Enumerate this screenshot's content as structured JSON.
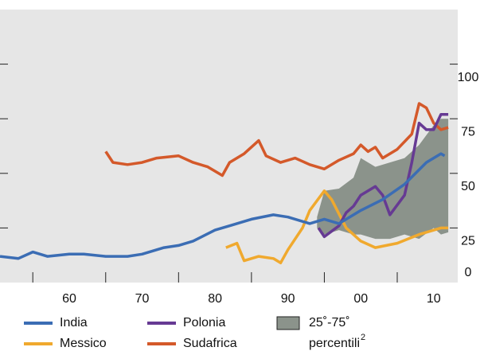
{
  "chart_data": {
    "type": "line",
    "xlim": [
      1950.5,
      2013.3
    ],
    "xticks": [
      {
        "value": 1960,
        "label": "60"
      },
      {
        "value": 1970,
        "label": "70"
      },
      {
        "value": 1980,
        "label": "80"
      },
      {
        "value": 1990,
        "label": "90"
      },
      {
        "value": 2000,
        "label": "00"
      },
      {
        "value": 2010,
        "label": "10"
      }
    ],
    "xminor": [
      1955,
      1965,
      1975,
      1985,
      1995,
      2005
    ],
    "ylim": [
      0,
      125
    ],
    "yticks": [
      0,
      25,
      50,
      75,
      100
    ],
    "series": [
      {
        "name": "India",
        "color": "#3b6db4",
        "x": [
          1950.5,
          1953,
          1955,
          1957,
          1960,
          1962,
          1965,
          1968,
          1970,
          1973,
          1975,
          1977,
          1980,
          1982,
          1985,
          1988,
          1990,
          1993,
          1995,
          1997,
          2000,
          2003,
          2006,
          2009,
          2011,
          2011.5
        ],
        "values": [
          12,
          11,
          14,
          12,
          13,
          13,
          12,
          12,
          13,
          16,
          17,
          19,
          24,
          26,
          29,
          31,
          30,
          27,
          29,
          27,
          33,
          38,
          45,
          55,
          59,
          58
        ]
      },
      {
        "name": "Messico",
        "color": "#f0a92e",
        "x": [
          1981.5,
          1983,
          1984,
          1986,
          1988,
          1989,
          1990,
          1992,
          1993,
          1995,
          1996,
          1998,
          2000,
          2002,
          2005,
          2008,
          2011,
          2012
        ],
        "values": [
          16,
          18,
          10,
          12,
          11,
          9,
          15,
          25,
          33,
          42,
          38,
          25,
          19,
          16,
          18,
          22,
          25,
          25
        ]
      },
      {
        "name": "Polonia",
        "color": "#663a93",
        "x": [
          1994.2,
          1995,
          1997,
          1998,
          1999,
          2000,
          2002,
          2003,
          2004,
          2006,
          2007,
          2008,
          2009,
          2010,
          2011,
          2012
        ],
        "values": [
          25,
          21,
          26,
          32,
          35,
          40,
          44,
          40,
          31,
          40,
          55,
          73,
          70,
          70,
          77,
          77
        ]
      },
      {
        "name": "Sudafrica",
        "color": "#d4592a",
        "x": [
          1965,
          1966,
          1968,
          1970,
          1972,
          1975,
          1977,
          1979,
          1981,
          1982,
          1984,
          1986,
          1987,
          1989,
          1991,
          1993,
          1995,
          1997,
          1999,
          2000,
          2001,
          2002,
          2003,
          2005,
          2007,
          2008,
          2009,
          2010,
          2011,
          2012
        ],
        "values": [
          60,
          55,
          54,
          55,
          57,
          58,
          55,
          53,
          49,
          55,
          59,
          65,
          58,
          55,
          57,
          54,
          52,
          56,
          59,
          63,
          60,
          62,
          57,
          61,
          68,
          82,
          80,
          73,
          70,
          71
        ]
      }
    ],
    "band": {
      "name": "25˚-75˚ percentili",
      "note": "2",
      "color": "#8b938b",
      "x": [
        1994,
        1995,
        1997,
        1999,
        2000,
        2002,
        2004,
        2006,
        2008,
        2010,
        2011,
        2012
      ],
      "lower": [
        25,
        22,
        24,
        22,
        22,
        20,
        20,
        22,
        20,
        25,
        22,
        23
      ],
      "upper": [
        30,
        42,
        43,
        48,
        57,
        53,
        55,
        57,
        63,
        72,
        75,
        75
      ]
    }
  }
}
